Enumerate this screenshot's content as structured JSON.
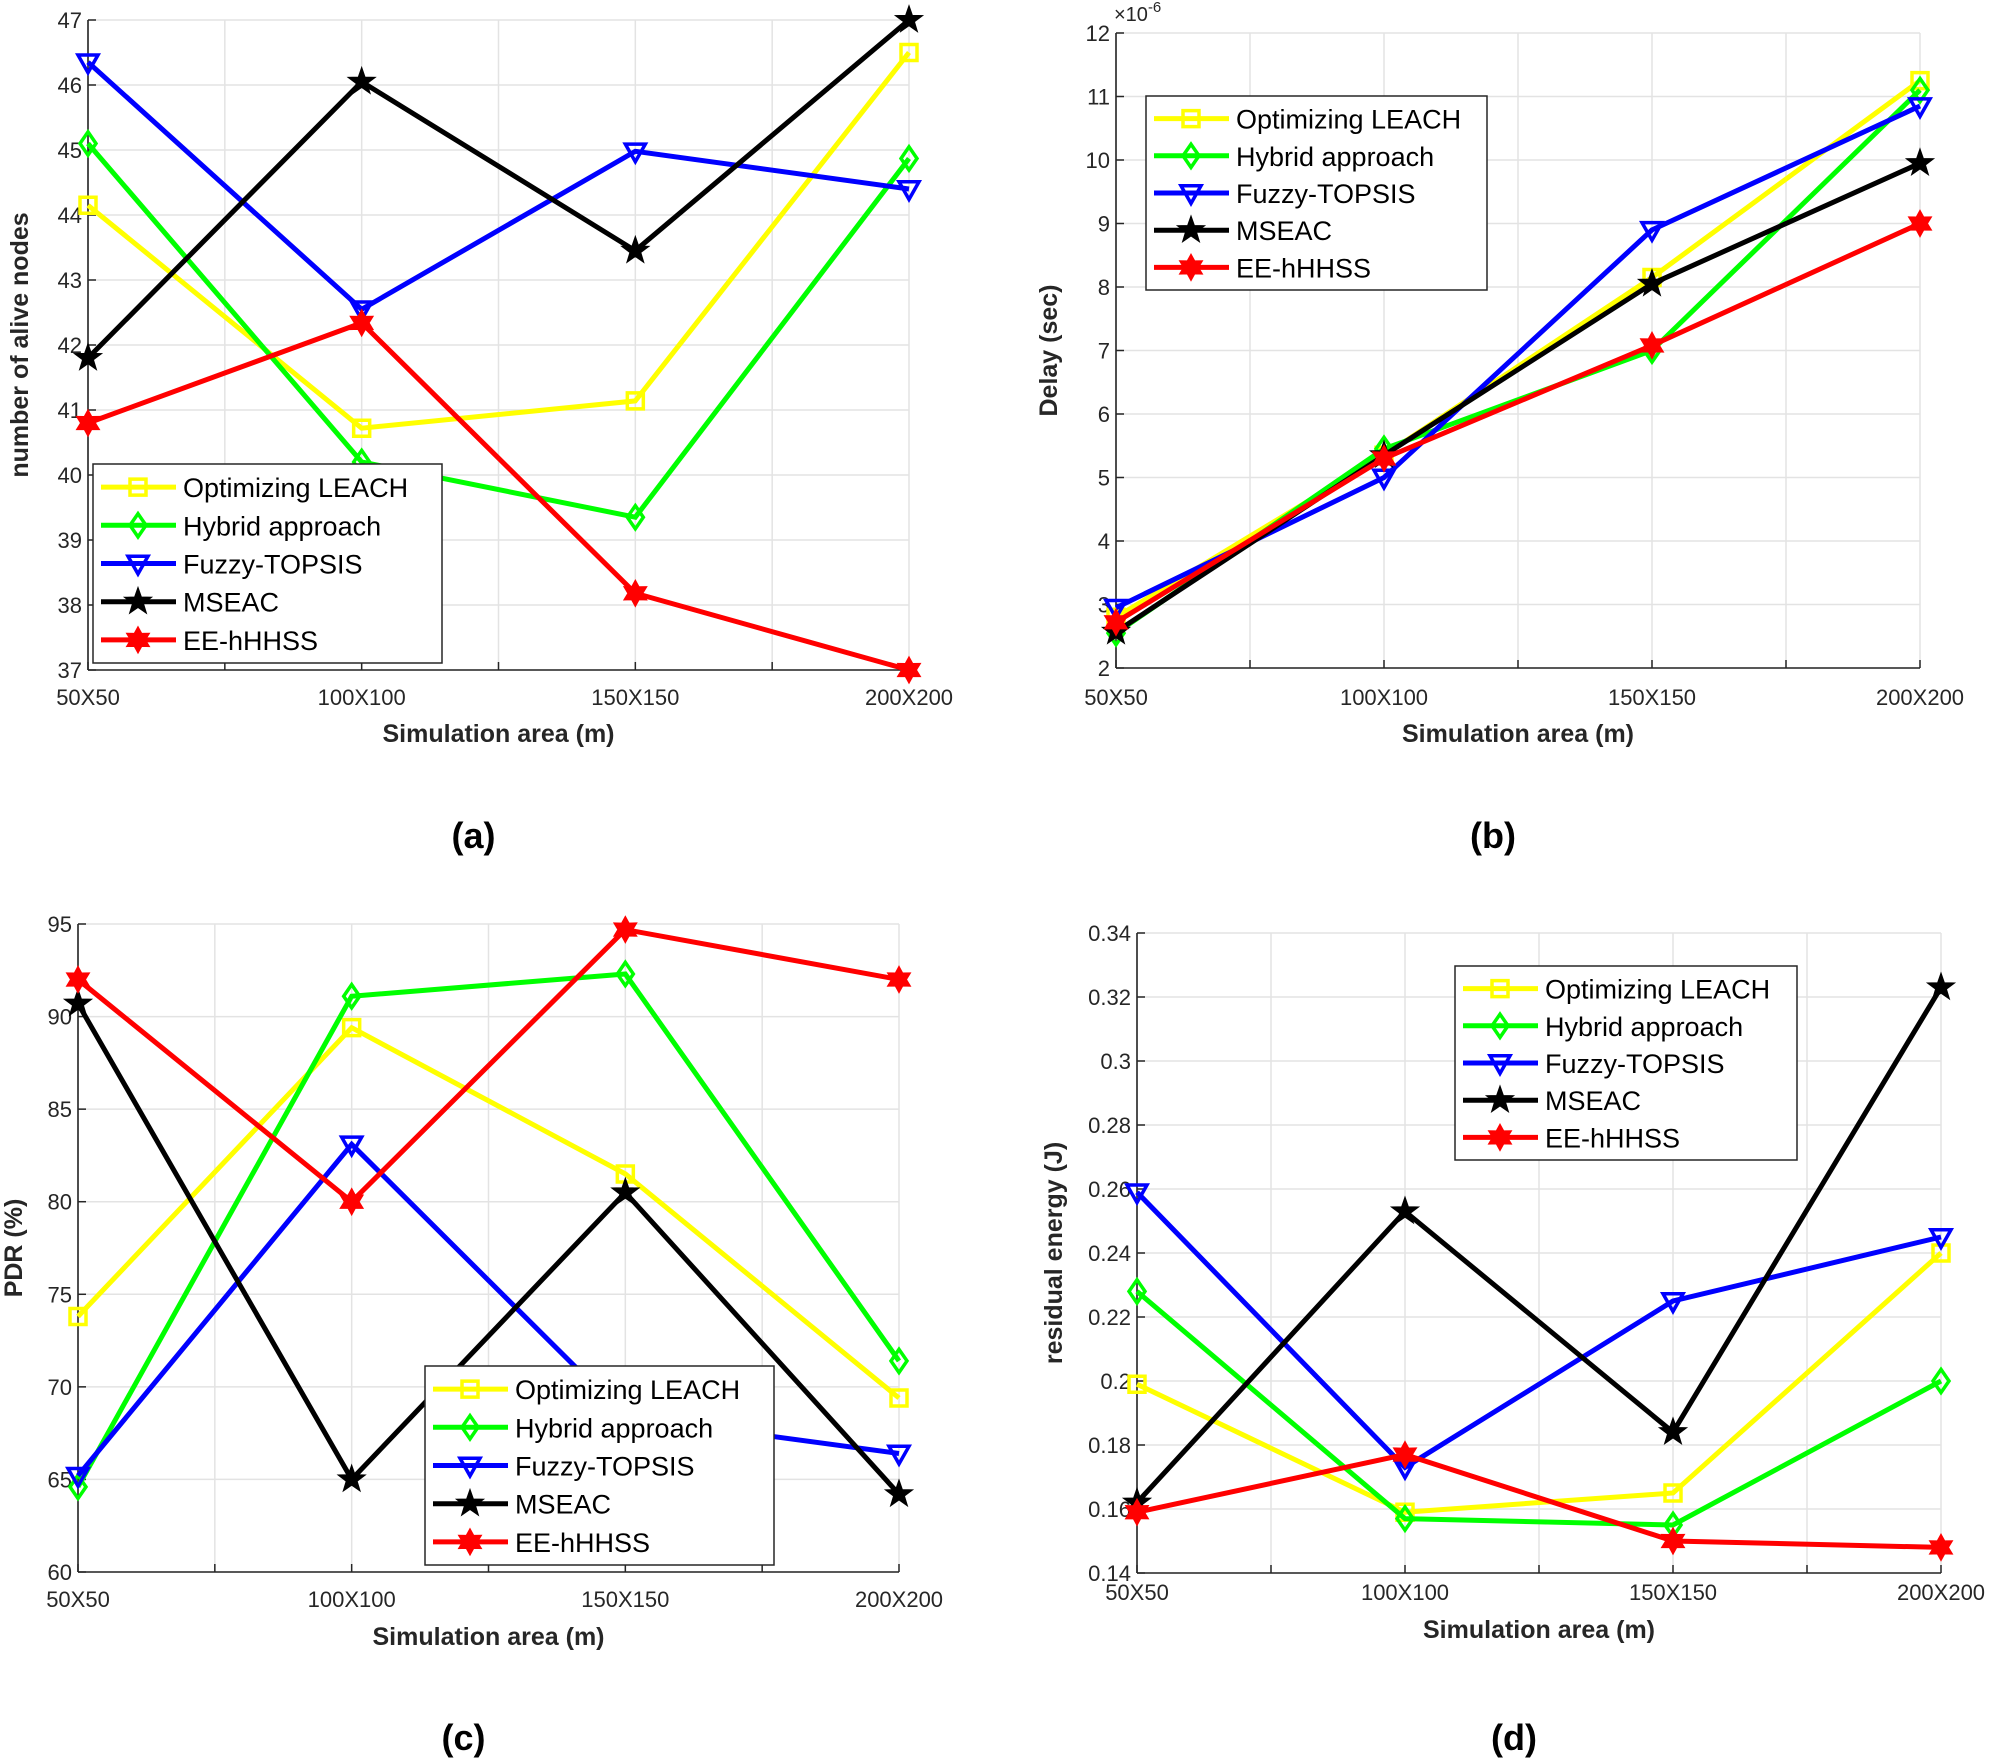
{
  "figure": {
    "panel_labels": [
      "(a)",
      "(b)",
      "(c)",
      "(d)"
    ]
  },
  "chart_data": [
    {
      "type": "line",
      "panel": "(a)",
      "title": "",
      "xlabel": "Simulation area (m)",
      "ylabel": "number of alive nodes",
      "categories": [
        "50X50",
        "100X100",
        "150X150",
        "200X200"
      ],
      "ylim": [
        37,
        47
      ],
      "yticks": [
        37,
        38,
        39,
        40,
        41,
        42,
        43,
        44,
        45,
        46,
        47
      ],
      "ytick_labels": [
        "37",
        "38",
        "39",
        "40",
        "41",
        "42",
        "43",
        "44",
        "45",
        "46",
        "47"
      ],
      "grid": true,
      "legend_position": "bottom-left",
      "series": [
        {
          "name": "Optimizing LEACH",
          "color": "#FFFF00",
          "marker": "square",
          "values": [
            44.15,
            40.72,
            41.14,
            46.5
          ]
        },
        {
          "name": "Hybrid approach",
          "color": "#00FF00",
          "marker": "diamond",
          "values": [
            45.1,
            40.2,
            39.35,
            44.87
          ]
        },
        {
          "name": "Fuzzy-TOPSIS",
          "color": "#0000FF",
          "marker": "triangle-down",
          "values": [
            46.35,
            42.55,
            44.98,
            44.4
          ]
        },
        {
          "name": "MSEAC",
          "color": "#000000",
          "marker": "pentagram",
          "values": [
            41.8,
            46.05,
            43.45,
            47.0
          ]
        },
        {
          "name": "EE-hHHSS",
          "color": "#FF0000",
          "marker": "hexagram",
          "values": [
            40.8,
            42.34,
            38.18,
            37.0
          ]
        }
      ]
    },
    {
      "type": "line",
      "panel": "(b)",
      "title": "",
      "xlabel": "Simulation area (m)",
      "ylabel": "Delay (sec)",
      "y_multiplier_label": "×10",
      "y_multiplier_exponent": "-6",
      "categories": [
        "50X50",
        "100X100",
        "150X150",
        "200X200"
      ],
      "ylim": [
        2,
        12
      ],
      "yticks": [
        2,
        3,
        4,
        5,
        6,
        7,
        8,
        9,
        10,
        11,
        12
      ],
      "ytick_labels": [
        "2",
        "3",
        "4",
        "5",
        "6",
        "7",
        "8",
        "9",
        "10",
        "11",
        "12"
      ],
      "grid": true,
      "legend_position": "top-left",
      "series": [
        {
          "name": "Optimizing LEACH",
          "color": "#FFFF00",
          "marker": "square",
          "values": [
            2.8,
            5.35,
            8.15,
            11.25
          ]
        },
        {
          "name": "Hybrid approach",
          "color": "#00FF00",
          "marker": "diamond",
          "values": [
            2.55,
            5.45,
            7.0,
            11.1
          ]
        },
        {
          "name": "Fuzzy-TOPSIS",
          "color": "#0000FF",
          "marker": "triangle-down",
          "values": [
            2.95,
            5.0,
            8.9,
            10.85
          ]
        },
        {
          "name": "MSEAC",
          "color": "#000000",
          "marker": "pentagram",
          "values": [
            2.57,
            5.35,
            8.05,
            9.95
          ]
        },
        {
          "name": "EE-hHHSS",
          "color": "#FF0000",
          "marker": "hexagram",
          "values": [
            2.72,
            5.3,
            7.08,
            9.0
          ]
        }
      ]
    },
    {
      "type": "line",
      "panel": "(c)",
      "title": "",
      "xlabel": "Simulation area (m)",
      "ylabel": "PDR (%)",
      "categories": [
        "50X50",
        "100X100",
        "150X150",
        "200X200"
      ],
      "ylim": [
        60,
        95
      ],
      "yticks": [
        60,
        65,
        70,
        75,
        80,
        85,
        90,
        95
      ],
      "ytick_labels": [
        "60",
        "65",
        "70",
        "75",
        "80",
        "85",
        "90",
        "95"
      ],
      "grid": true,
      "legend_position": "bottom-center",
      "series": [
        {
          "name": "Optimizing LEACH",
          "color": "#FFFF00",
          "marker": "square",
          "values": [
            73.8,
            89.4,
            81.5,
            69.4
          ]
        },
        {
          "name": "Hybrid approach",
          "color": "#00FF00",
          "marker": "diamond",
          "values": [
            64.6,
            91.1,
            92.3,
            71.4
          ]
        },
        {
          "name": "Fuzzy-TOPSIS",
          "color": "#0000FF",
          "marker": "triangle-down",
          "values": [
            65.2,
            83.1,
            68.4,
            66.4
          ]
        },
        {
          "name": "MSEAC",
          "color": "#000000",
          "marker": "pentagram",
          "values": [
            90.7,
            65.0,
            80.5,
            64.2
          ]
        },
        {
          "name": "EE-hHHSS",
          "color": "#FF0000",
          "marker": "hexagram",
          "values": [
            92.0,
            80.0,
            94.7,
            92.0
          ]
        }
      ]
    },
    {
      "type": "line",
      "panel": "(d)",
      "title": "",
      "xlabel": "Simulation area (m)",
      "ylabel": "residual energy (J)",
      "categories": [
        "50X50",
        "100X100",
        "150X150",
        "200X200"
      ],
      "ylim": [
        0.14,
        0.34
      ],
      "yticks": [
        0.14,
        0.16,
        0.18,
        0.2,
        0.22,
        0.24,
        0.26,
        0.28,
        0.3,
        0.32,
        0.34
      ],
      "ytick_labels": [
        "0.14",
        "0.16",
        "0.18",
        "0.2",
        "0.22",
        "0.24",
        "0.26",
        "0.28",
        "0.3",
        "0.32",
        "0.34"
      ],
      "grid": true,
      "legend_position": "top-right",
      "series": [
        {
          "name": "Optimizing LEACH",
          "color": "#FFFF00",
          "marker": "square",
          "values": [
            0.199,
            0.159,
            0.165,
            0.24
          ]
        },
        {
          "name": "Hybrid approach",
          "color": "#00FF00",
          "marker": "diamond",
          "values": [
            0.228,
            0.157,
            0.155,
            0.2
          ]
        },
        {
          "name": "Fuzzy-TOPSIS",
          "color": "#0000FF",
          "marker": "triangle-down",
          "values": [
            0.259,
            0.173,
            0.225,
            0.245
          ]
        },
        {
          "name": "MSEAC",
          "color": "#000000",
          "marker": "pentagram",
          "values": [
            0.162,
            0.253,
            0.184,
            0.323
          ]
        },
        {
          "name": "EE-hHHSS",
          "color": "#FF0000",
          "marker": "hexagram",
          "values": [
            0.159,
            0.177,
            0.15,
            0.148
          ]
        }
      ]
    }
  ]
}
